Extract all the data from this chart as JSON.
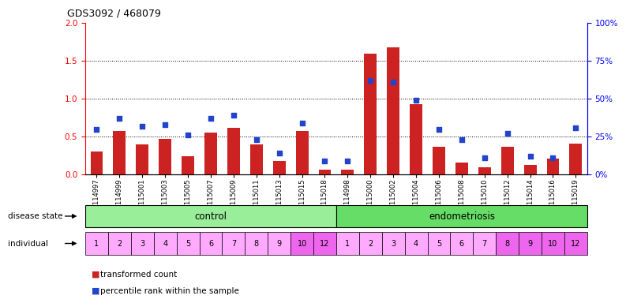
{
  "title": "GDS3092 / 468079",
  "samples": [
    "GSM114997",
    "GSM114999",
    "GSM115001",
    "GSM115003",
    "GSM115005",
    "GSM115007",
    "GSM115009",
    "GSM115011",
    "GSM115013",
    "GSM115015",
    "GSM115018",
    "GSM114998",
    "GSM115000",
    "GSM115002",
    "GSM115004",
    "GSM115006",
    "GSM115008",
    "GSM115010",
    "GSM115012",
    "GSM115014",
    "GSM115016",
    "GSM115019"
  ],
  "bar_values": [
    0.3,
    0.57,
    0.4,
    0.47,
    0.24,
    0.55,
    0.62,
    0.4,
    0.18,
    0.57,
    0.06,
    0.06,
    1.6,
    1.68,
    0.93,
    0.37,
    0.16,
    0.1,
    0.37,
    0.13,
    0.21,
    0.41
  ],
  "dot_values_pct": [
    30,
    37,
    32,
    33,
    26,
    37,
    39,
    23,
    14,
    34,
    9,
    9,
    62,
    61,
    49,
    30,
    23,
    11,
    27,
    12,
    11,
    31
  ],
  "individuals": [
    "1",
    "2",
    "3",
    "4",
    "5",
    "6",
    "7",
    "8",
    "9",
    "10",
    "12",
    "1",
    "2",
    "3",
    "4",
    "5",
    "6",
    "7",
    "8",
    "9",
    "10",
    "12"
  ],
  "control_count": 11,
  "endo_count": 11,
  "bar_color": "#cc2222",
  "dot_color": "#2244cc",
  "control_color": "#99ee99",
  "endo_color": "#66dd66",
  "indiv_colors_ctrl": [
    "#ffaaff",
    "#ffaaff",
    "#ffaaff",
    "#ffaaff",
    "#ffaaff",
    "#ffaaff",
    "#ffaaff",
    "#ffaaff",
    "#ffaaff",
    "#ee66ee",
    "#ee66ee"
  ],
  "indiv_colors_endo": [
    "#ffaaff",
    "#ffaaff",
    "#ffaaff",
    "#ffaaff",
    "#ffaaff",
    "#ffaaff",
    "#ffaaff",
    "#ee66ee",
    "#ee66ee",
    "#ee66ee",
    "#ee66ee"
  ],
  "ylim_left": [
    0,
    2.0
  ],
  "ylim_right": [
    0,
    100
  ],
  "yticks_left": [
    0,
    0.5,
    1.0,
    1.5,
    2.0
  ],
  "yticks_right": [
    0,
    25,
    50,
    75,
    100
  ],
  "grid_values": [
    0.5,
    1.0,
    1.5
  ],
  "bar_width": 0.55,
  "dot_size": 22
}
